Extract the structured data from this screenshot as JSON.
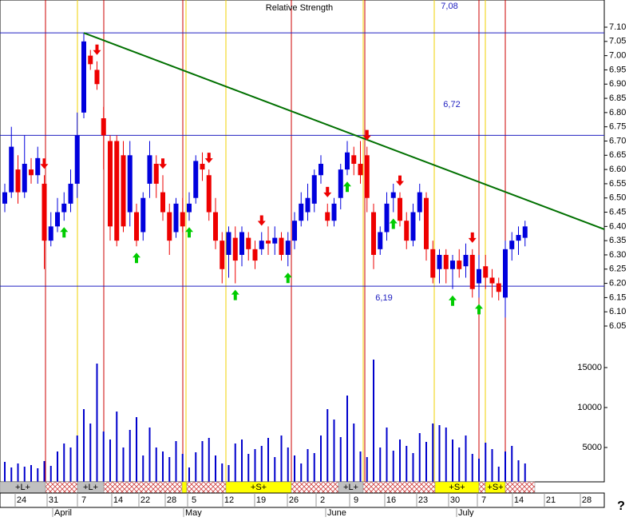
{
  "chart_data": {
    "type": "candlestick",
    "title": "Relative Strength",
    "open": [
      6.48,
      6.52,
      6.6,
      6.52,
      6.6,
      6.58,
      6.55,
      6.35,
      6.4,
      6.45,
      6.48,
      6.55,
      6.8,
      7.0,
      6.95,
      6.78,
      6.7,
      6.7,
      6.65,
      6.45,
      6.45,
      6.38,
      6.55,
      6.62,
      6.52,
      6.45,
      6.38,
      6.45,
      6.45,
      6.5,
      6.62,
      6.58,
      6.45,
      6.35,
      6.3,
      6.36,
      6.3,
      6.36,
      6.32,
      6.32,
      6.35,
      6.34,
      6.36,
      6.3,
      6.35,
      6.42,
      6.45,
      6.48,
      6.58,
      6.45,
      6.42,
      6.5,
      6.6,
      6.65,
      6.62,
      6.65,
      6.45,
      6.32,
      6.38,
      6.5,
      6.5,
      6.42,
      6.35,
      6.45,
      6.5,
      6.32,
      6.25,
      6.3,
      6.25,
      6.28,
      6.26,
      6.3,
      6.2,
      6.26,
      6.22,
      6.2,
      6.15,
      6.32,
      6.35,
      6.36
    ],
    "close": [
      6.52,
      6.68,
      6.52,
      6.62,
      6.58,
      6.64,
      6.35,
      6.4,
      6.45,
      6.48,
      6.55,
      6.72,
      7.05,
      6.97,
      6.9,
      6.72,
      6.4,
      6.35,
      6.4,
      6.65,
      6.35,
      6.5,
      6.65,
      6.55,
      6.45,
      6.35,
      6.48,
      6.4,
      6.48,
      6.63,
      6.6,
      6.45,
      6.35,
      6.25,
      6.38,
      6.28,
      6.38,
      6.32,
      6.28,
      6.35,
      6.34,
      6.36,
      6.3,
      6.35,
      6.42,
      6.48,
      6.5,
      6.58,
      6.62,
      6.42,
      6.48,
      6.6,
      6.66,
      6.62,
      6.58,
      6.5,
      6.3,
      6.38,
      6.48,
      6.52,
      6.42,
      6.35,
      6.45,
      6.52,
      6.32,
      6.22,
      6.3,
      6.25,
      6.28,
      6.25,
      6.3,
      6.18,
      6.25,
      6.22,
      6.2,
      6.17,
      6.32,
      6.35,
      6.37,
      6.4
    ],
    "high": [
      6.55,
      6.75,
      6.65,
      6.72,
      6.64,
      6.68,
      6.58,
      6.45,
      6.5,
      6.52,
      6.6,
      6.8,
      7.08,
      7.02,
      6.98,
      6.82,
      6.72,
      6.72,
      6.7,
      6.7,
      6.48,
      6.52,
      6.7,
      6.65,
      6.58,
      6.48,
      6.5,
      6.5,
      6.52,
      6.65,
      6.66,
      6.6,
      6.5,
      6.38,
      6.4,
      6.4,
      6.4,
      6.38,
      6.35,
      6.38,
      6.4,
      6.4,
      6.38,
      6.38,
      6.45,
      6.52,
      6.55,
      6.6,
      6.65,
      6.48,
      6.5,
      6.62,
      6.7,
      6.68,
      6.7,
      6.68,
      6.48,
      6.4,
      6.52,
      6.55,
      6.52,
      6.45,
      6.48,
      6.55,
      6.52,
      6.35,
      6.32,
      6.32,
      6.3,
      6.32,
      6.34,
      6.32,
      6.3,
      6.3,
      6.25,
      6.22,
      6.35,
      6.38,
      6.4,
      6.42
    ],
    "low": [
      6.45,
      6.5,
      6.48,
      6.5,
      6.55,
      6.55,
      6.25,
      6.33,
      6.38,
      6.42,
      6.45,
      6.5,
      6.78,
      6.95,
      6.88,
      6.6,
      6.35,
      6.33,
      6.38,
      6.4,
      6.33,
      6.35,
      6.5,
      6.5,
      6.42,
      6.3,
      6.36,
      6.38,
      6.42,
      6.48,
      6.56,
      6.42,
      6.32,
      6.2,
      6.22,
      6.2,
      6.26,
      6.28,
      6.25,
      6.3,
      6.3,
      6.3,
      6.28,
      6.26,
      6.32,
      6.4,
      6.42,
      6.45,
      6.55,
      6.4,
      6.4,
      6.46,
      6.58,
      6.58,
      6.55,
      6.45,
      6.25,
      6.3,
      6.35,
      6.45,
      6.4,
      6.32,
      6.33,
      6.42,
      6.28,
      6.2,
      6.2,
      6.2,
      6.18,
      6.22,
      6.22,
      6.15,
      6.15,
      6.18,
      6.15,
      6.14,
      6.08,
      6.28,
      6.3,
      6.33
    ],
    "volume": [
      3200,
      2500,
      3000,
      2600,
      2800,
      2400,
      3300,
      2700,
      4500,
      5500,
      5000,
      6500,
      9800,
      8000,
      15500,
      7000,
      6000,
      9500,
      5000,
      7200,
      8800,
      4000,
      7500,
      5000,
      4500,
      3800,
      5800,
      4200,
      2500,
      4400,
      5800,
      6200,
      4000,
      3000,
      2800,
      5500,
      6000,
      4200,
      4800,
      5200,
      6200,
      3800,
      6500,
      5000,
      4000,
      3000,
      4800,
      4300,
      6500,
      9800,
      8500,
      6300,
      11500,
      8000,
      4500,
      3800,
      16000,
      5000,
      7500,
      4600,
      6000,
      5200,
      4300,
      6800,
      5700,
      8000,
      7800,
      7500,
      6000,
      5000,
      6500,
      4200,
      3600,
      5600,
      4800,
      2600,
      4500,
      5200,
      3400,
      3000
    ],
    "ylim": [
      6.02,
      7.2
    ],
    "yticks": [
      {
        "value": 7.1,
        "label": "7.10"
      },
      {
        "value": 7.05,
        "label": "7.05"
      },
      {
        "value": 7.0,
        "label": "7.00"
      },
      {
        "value": 6.95,
        "label": "6.95"
      },
      {
        "value": 6.9,
        "label": "6.90"
      },
      {
        "value": 6.85,
        "label": "6.85"
      },
      {
        "value": 6.8,
        "label": "6.80"
      },
      {
        "value": 6.75,
        "label": "6.75"
      },
      {
        "value": 6.7,
        "label": "6.70"
      },
      {
        "value": 6.65,
        "label": "6.65"
      },
      {
        "value": 6.6,
        "label": "6.60"
      },
      {
        "value": 6.55,
        "label": "6.55"
      },
      {
        "value": 6.5,
        "label": "6.50"
      },
      {
        "value": 6.45,
        "label": "6.45"
      },
      {
        "value": 6.4,
        "label": "6.40"
      },
      {
        "value": 6.35,
        "label": "6.35"
      },
      {
        "value": 6.3,
        "label": "6.30"
      },
      {
        "value": 6.25,
        "label": "6.25"
      },
      {
        "value": 6.2,
        "label": "6.20"
      },
      {
        "value": 6.15,
        "label": "6.15"
      },
      {
        "value": 6.1,
        "label": "6.10"
      },
      {
        "value": 6.05,
        "label": "6.05"
      }
    ],
    "y2lim": [
      0,
      17000
    ],
    "y2ticks": [
      5000,
      10000,
      15000
    ],
    "levels": [
      {
        "value": 7.08,
        "label": "7,08"
      },
      {
        "value": 6.72,
        "label": "6,72"
      },
      {
        "value": 6.19,
        "label": "6,19"
      }
    ],
    "trendline": [
      7.08,
      6.39
    ],
    "buy_signals": [
      9,
      20,
      28,
      35,
      43,
      52,
      59,
      68,
      72
    ],
    "sell_signals": [
      6,
      14,
      24,
      31,
      39,
      49,
      55,
      60,
      71
    ],
    "up_color": "#0000dd",
    "down_color": "#ee0000",
    "dates": [
      "24",
      "31",
      "7",
      "14",
      "22",
      "28",
      "5",
      "12",
      "19",
      "26",
      "2",
      "9",
      "16",
      "23",
      "30",
      "7",
      "14",
      "21",
      "28"
    ],
    "months": [
      "April",
      "May",
      "June",
      "July"
    ],
    "bands": [
      "+L+",
      "+L+",
      "+S+",
      "+L+",
      "+S+",
      "+S+"
    ],
    "help": "?"
  }
}
